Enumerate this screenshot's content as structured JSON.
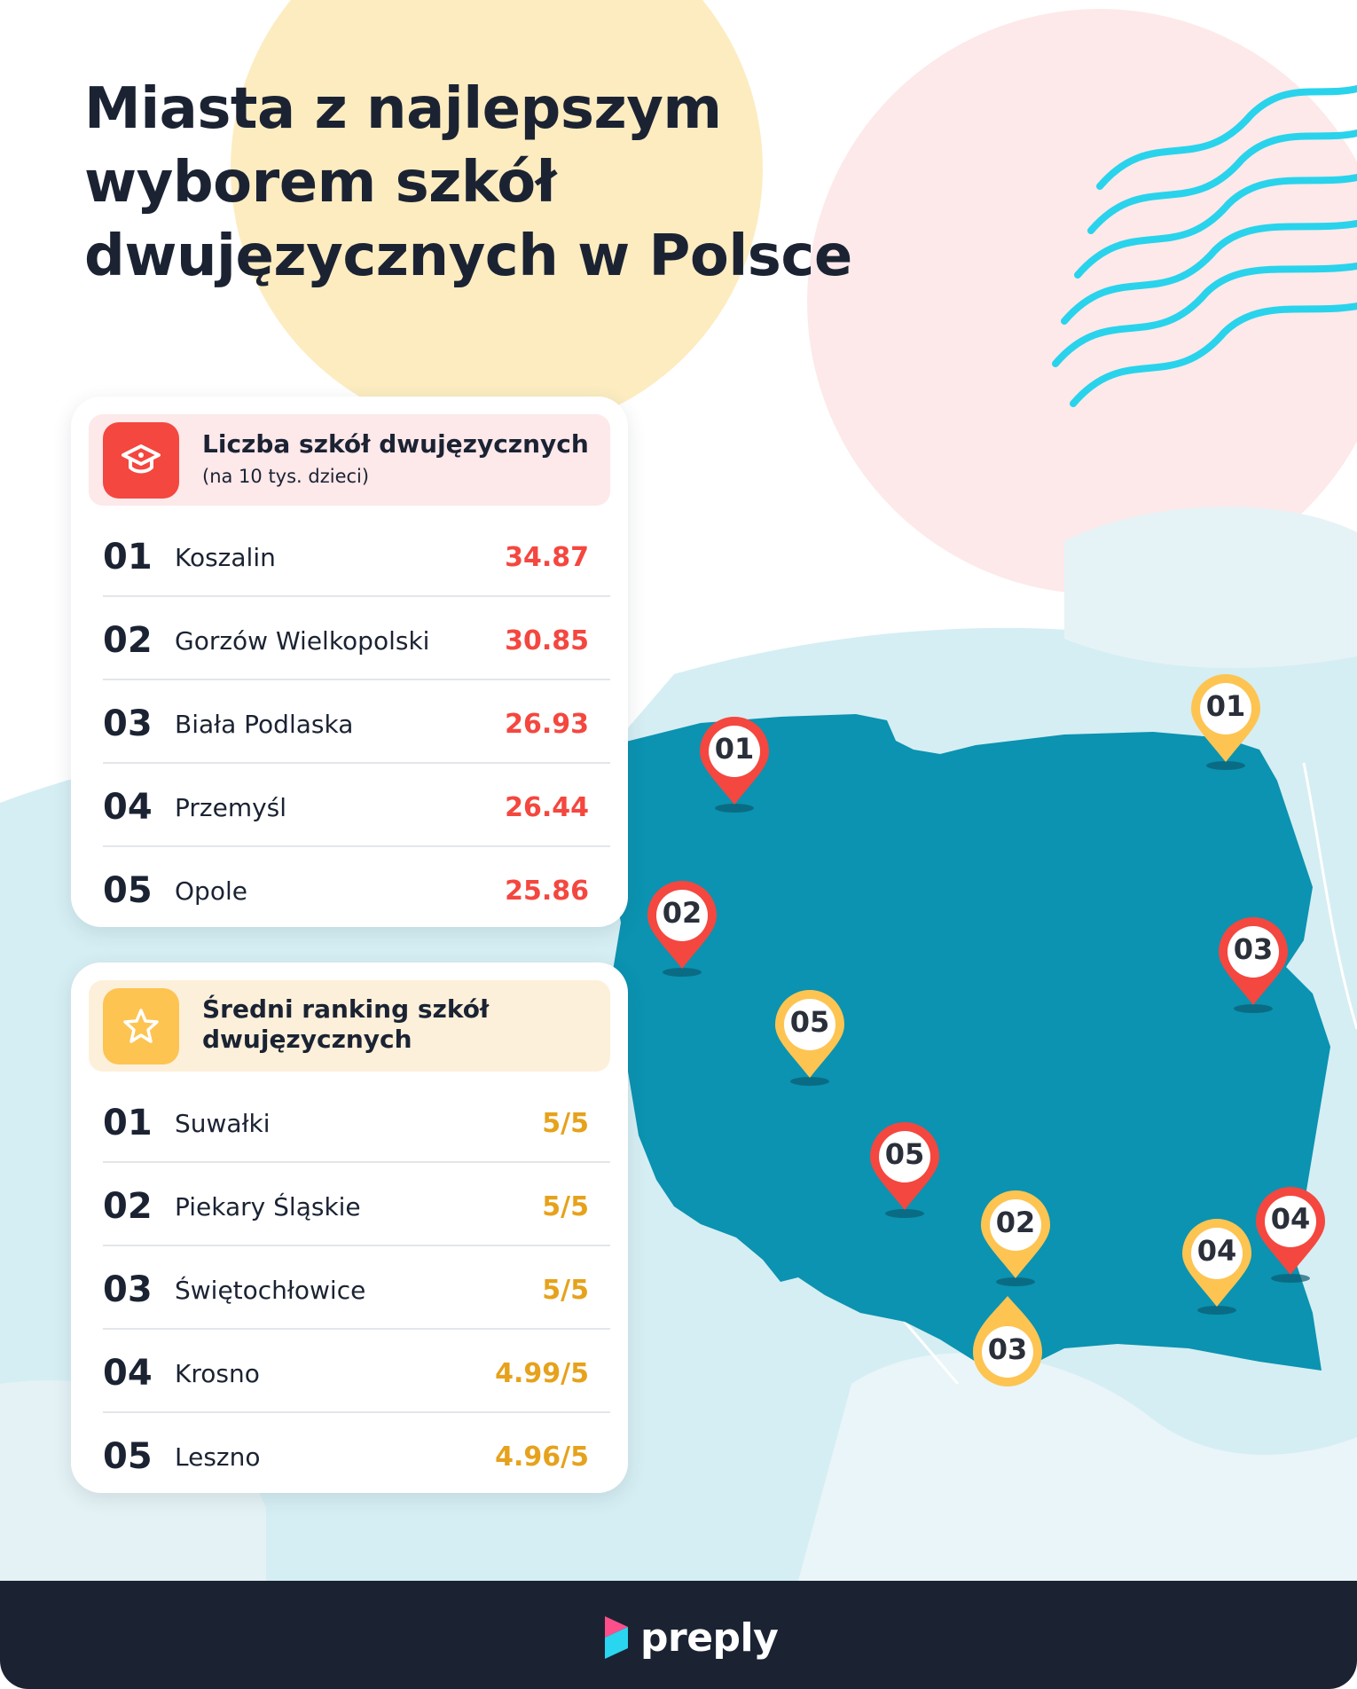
{
  "title": {
    "line1": "Miasta z najlepszym",
    "line2": "wyborem szkół",
    "line3": "dwujęzycznych w Polsce"
  },
  "colors": {
    "red": "#f4473f",
    "yellow": "#fdc452",
    "dark": "#1b2333",
    "map": "#0b93b1",
    "wave": "#29d3ec"
  },
  "card_schools": {
    "icon": "graduation-cap-icon",
    "title": "Liczba szkół dwujęzycznych",
    "subtitle": "(na 10 tys. dzieci)",
    "rows": [
      {
        "rank": "01",
        "city": "Koszalin",
        "value": "34.87"
      },
      {
        "rank": "02",
        "city": "Gorzów Wielkopolski",
        "value": "30.85"
      },
      {
        "rank": "03",
        "city": "Biała Podlaska",
        "value": "26.93"
      },
      {
        "rank": "04",
        "city": "Przemyśl",
        "value": "26.44"
      },
      {
        "rank": "05",
        "city": "Opole",
        "value": "25.86"
      }
    ]
  },
  "card_ranking": {
    "icon": "star-icon",
    "title_line1": "Średni ranking szkół",
    "title_line2": "dwujęzycznych",
    "rows": [
      {
        "rank": "01",
        "city": "Suwałki",
        "value": "5/5"
      },
      {
        "rank": "02",
        "city": "Piekary Śląskie",
        "value": "5/5"
      },
      {
        "rank": "03",
        "city": "Świętochłowice",
        "value": "5/5"
      },
      {
        "rank": "04",
        "city": "Krosno",
        "value": "4.99/5"
      },
      {
        "rank": "05",
        "city": "Leszno",
        "value": "4.96/5"
      }
    ]
  },
  "map_pins": {
    "red": [
      "01",
      "02",
      "03",
      "04",
      "05"
    ],
    "yellow": [
      "01",
      "02",
      "03",
      "04",
      "05"
    ]
  },
  "footer": {
    "logo_text": "preply",
    "logo_icon": "preply-logo-icon"
  }
}
